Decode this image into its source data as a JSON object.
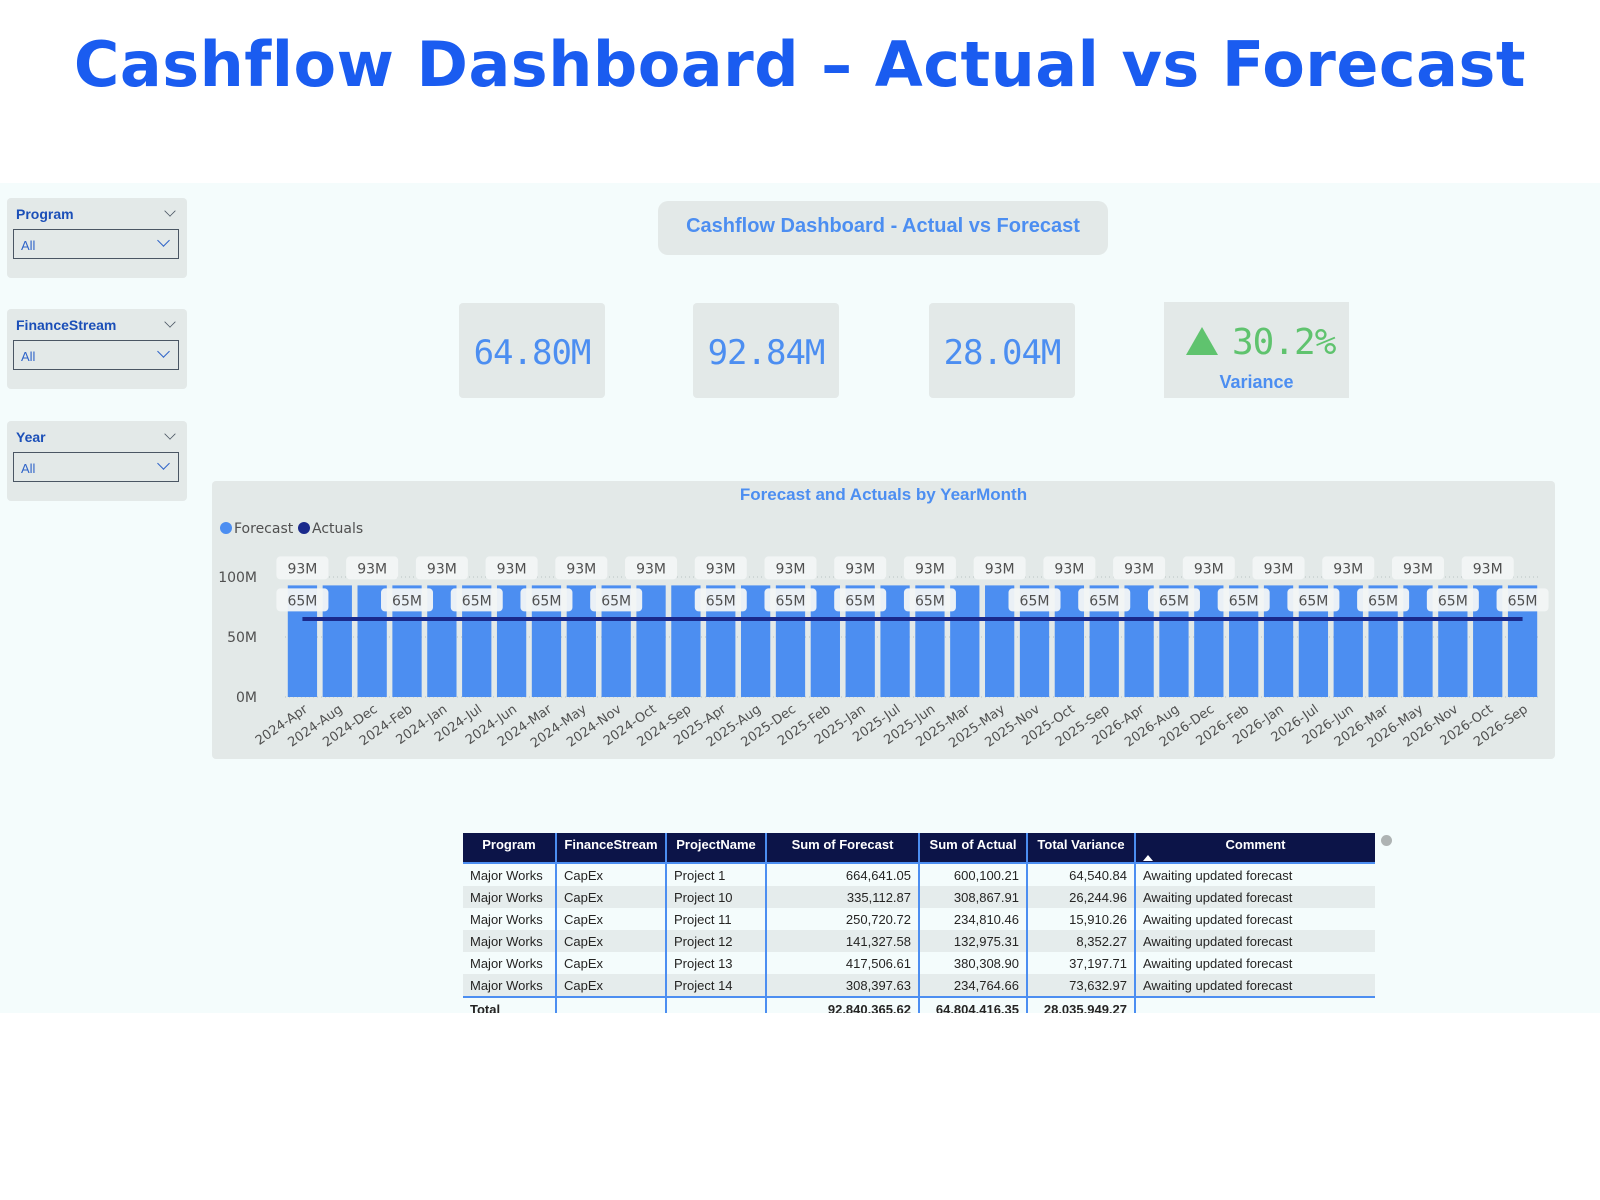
{
  "page_title": "Cashflow Dashboard – Actual vs Forecast",
  "slicers": [
    {
      "title": "Program",
      "value": "All"
    },
    {
      "title": "FinanceStream",
      "value": "All"
    },
    {
      "title": "Year",
      "value": "All"
    }
  ],
  "dashboard_title": "Cashflow Dashboard - Actual vs Forecast",
  "kpis": {
    "actual": "64.80M",
    "forecast": "92.84M",
    "variance_amount": "28.04M",
    "variance_pct": "30.2%",
    "variance_label": "Variance"
  },
  "colors": {
    "forecast": "#4c8ef1",
    "actuals": "#1a2a8c",
    "accent_green": "#5fc36e",
    "title_blue": "#1a5cf0"
  },
  "chart_data": {
    "type": "bar",
    "title": "Forecast and Actuals by YearMonth",
    "legend": [
      "Forecast",
      "Actuals"
    ],
    "legend_position": "top-left",
    "categories": [
      "2024-Apr",
      "2024-Aug",
      "2024-Dec",
      "2024-Feb",
      "2024-Jan",
      "2024-Jul",
      "2024-Jun",
      "2024-Mar",
      "2024-May",
      "2024-Nov",
      "2024-Oct",
      "2024-Sep",
      "2025-Apr",
      "2025-Aug",
      "2025-Dec",
      "2025-Feb",
      "2025-Jan",
      "2025-Jul",
      "2025-Jun",
      "2025-Mar",
      "2025-May",
      "2025-Nov",
      "2025-Oct",
      "2025-Sep",
      "2026-Apr",
      "2026-Aug",
      "2026-Dec",
      "2026-Feb",
      "2026-Jan",
      "2026-Jul",
      "2026-Jun",
      "2026-Mar",
      "2026-May",
      "2026-Nov",
      "2026-Oct",
      "2026-Sep"
    ],
    "series": [
      {
        "name": "Forecast",
        "type": "bar",
        "values": [
          93,
          93,
          93,
          93,
          93,
          93,
          93,
          93,
          93,
          93,
          93,
          93,
          93,
          93,
          93,
          93,
          93,
          93,
          93,
          93,
          93,
          93,
          93,
          93,
          93,
          93,
          93,
          93,
          93,
          93,
          93,
          93,
          93,
          93,
          93,
          93
        ]
      },
      {
        "name": "Actuals",
        "type": "line",
        "values": [
          65,
          65,
          65,
          65,
          65,
          65,
          65,
          65,
          65,
          65,
          65,
          65,
          65,
          65,
          65,
          65,
          65,
          65,
          65,
          65,
          65,
          65,
          65,
          65,
          65,
          65,
          65,
          65,
          65,
          65,
          65,
          65,
          65,
          65,
          65,
          65
        ]
      }
    ],
    "forecast_label_indices": [
      0,
      2,
      4,
      6,
      8,
      10,
      12,
      14,
      16,
      18,
      20,
      22,
      24,
      26,
      28,
      30,
      32,
      34
    ],
    "actual_label_indices": [
      0,
      3,
      5,
      7,
      9,
      12,
      14,
      16,
      18,
      21,
      23,
      25,
      27,
      29,
      31,
      33,
      35
    ],
    "bar_label": "93M",
    "line_label": "65M",
    "y_ticks": [
      "0M",
      "50M",
      "100M"
    ],
    "y_tick_values": [
      0,
      50,
      100
    ],
    "ylim": [
      0,
      100
    ],
    "grid": true
  },
  "table": {
    "columns": [
      "Program",
      "FinanceStream",
      "ProjectName",
      "Sum of Forecast",
      "Sum of Actual",
      "Total Variance",
      "Comment"
    ],
    "rows": [
      [
        "Major Works",
        "CapEx",
        "Project 1",
        "664,641.05",
        "600,100.21",
        "64,540.84",
        "Awaiting updated forecast"
      ],
      [
        "Major Works",
        "CapEx",
        "Project 10",
        "335,112.87",
        "308,867.91",
        "26,244.96",
        "Awaiting updated forecast"
      ],
      [
        "Major Works",
        "CapEx",
        "Project 11",
        "250,720.72",
        "234,810.46",
        "15,910.26",
        "Awaiting updated forecast"
      ],
      [
        "Major Works",
        "CapEx",
        "Project 12",
        "141,327.58",
        "132,975.31",
        "8,352.27",
        "Awaiting updated forecast"
      ],
      [
        "Major Works",
        "CapEx",
        "Project 13",
        "417,506.61",
        "380,308.90",
        "37,197.71",
        "Awaiting updated forecast"
      ],
      [
        "Major Works",
        "CapEx",
        "Project 14",
        "308,397.63",
        "234,764.66",
        "73,632.97",
        "Awaiting updated forecast"
      ]
    ],
    "total": [
      "Total",
      "",
      "",
      "92,840,365.62",
      "64,804,416.35",
      "28,035,949.27",
      ""
    ]
  }
}
